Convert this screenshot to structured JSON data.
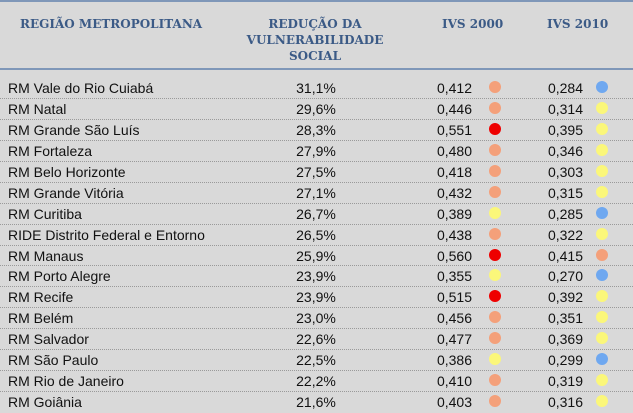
{
  "colors": {
    "orange": "#f4a07a",
    "red": "#ee0000",
    "yellow": "#fbf77a",
    "blue": "#6fa8f0"
  },
  "header": {
    "region": "REGIÃO METROPOLITANA",
    "reduction": [
      "REDUÇÃO DA",
      "VULNERABILIDADE",
      "SOCIAL"
    ],
    "ivs2000": "IVS 2000",
    "ivs2010": "IVS 2010"
  },
  "rows": [
    {
      "name": "RM Vale do Rio Cuiabá",
      "reduction": "31,1%",
      "ivs2000": "0,412",
      "c2000": "orange",
      "ivs2010": "0,284",
      "c2010": "blue"
    },
    {
      "name": "RM Natal",
      "reduction": "29,6%",
      "ivs2000": "0,446",
      "c2000": "orange",
      "ivs2010": "0,314",
      "c2010": "yellow"
    },
    {
      "name": "RM Grande São Luís",
      "reduction": "28,3%",
      "ivs2000": "0,551",
      "c2000": "red",
      "ivs2010": "0,395",
      "c2010": "yellow"
    },
    {
      "name": "RM Fortaleza",
      "reduction": "27,9%",
      "ivs2000": "0,480",
      "c2000": "orange",
      "ivs2010": "0,346",
      "c2010": "yellow"
    },
    {
      "name": "RM Belo Horizonte",
      "reduction": "27,5%",
      "ivs2000": "0,418",
      "c2000": "orange",
      "ivs2010": "0,303",
      "c2010": "yellow"
    },
    {
      "name": "RM Grande Vitória",
      "reduction": "27,1%",
      "ivs2000": "0,432",
      "c2000": "orange",
      "ivs2010": "0,315",
      "c2010": "yellow"
    },
    {
      "name": "RM Curitiba",
      "reduction": "26,7%",
      "ivs2000": "0,389",
      "c2000": "yellow",
      "ivs2010": "0,285",
      "c2010": "blue"
    },
    {
      "name": "RIDE Distrito Federal e Entorno",
      "reduction": "26,5%",
      "ivs2000": "0,438",
      "c2000": "orange",
      "ivs2010": "0,322",
      "c2010": "yellow"
    },
    {
      "name": "RM Manaus",
      "reduction": "25,9%",
      "ivs2000": "0,560",
      "c2000": "red",
      "ivs2010": "0,415",
      "c2010": "orange"
    },
    {
      "name": "RM Porto Alegre",
      "reduction": "23,9%",
      "ivs2000": "0,355",
      "c2000": "yellow",
      "ivs2010": "0,270",
      "c2010": "blue"
    },
    {
      "name": "RM Recife",
      "reduction": "23,9%",
      "ivs2000": "0,515",
      "c2000": "red",
      "ivs2010": "0,392",
      "c2010": "yellow"
    },
    {
      "name": "RM Belém",
      "reduction": "23,0%",
      "ivs2000": "0,456",
      "c2000": "orange",
      "ivs2010": "0,351",
      "c2010": "yellow"
    },
    {
      "name": "RM Salvador",
      "reduction": "22,6%",
      "ivs2000": "0,477",
      "c2000": "orange",
      "ivs2010": "0,369",
      "c2010": "yellow"
    },
    {
      "name": "RM São Paulo",
      "reduction": "22,5%",
      "ivs2000": "0,386",
      "c2000": "yellow",
      "ivs2010": "0,299",
      "c2010": "blue"
    },
    {
      "name": "RM Rio de Janeiro",
      "reduction": "22,2%",
      "ivs2000": "0,410",
      "c2000": "orange",
      "ivs2010": "0,319",
      "c2010": "yellow"
    },
    {
      "name": "RM Goiânia",
      "reduction": "21,6%",
      "ivs2000": "0,403",
      "c2000": "orange",
      "ivs2010": "0,316",
      "c2010": "yellow"
    }
  ]
}
